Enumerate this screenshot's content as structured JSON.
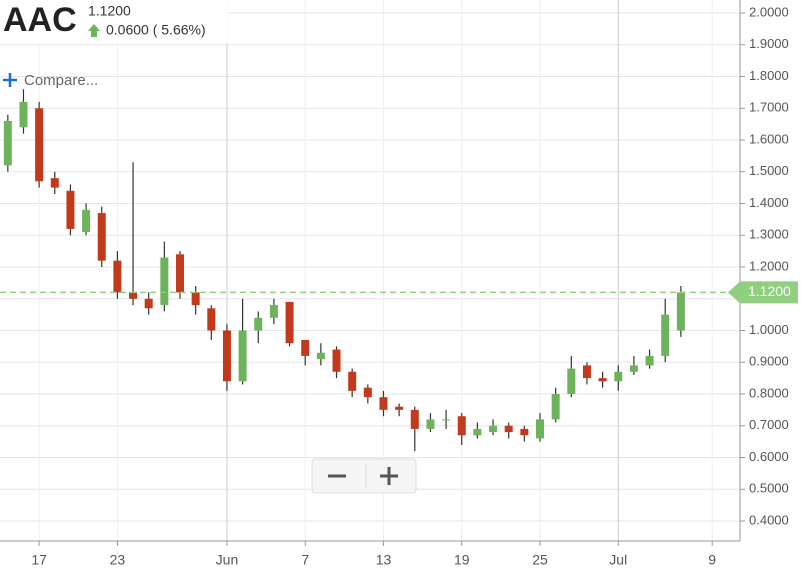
{
  "header": {
    "symbol": "AAC",
    "price": "1.1200",
    "change": "0.0600 ( 5.66%)",
    "compare": "Compare..."
  },
  "chart_data": {
    "type": "candlestick",
    "categories": [
      null,
      null,
      "17",
      null,
      null,
      null,
      null,
      "23",
      null,
      null,
      null,
      null,
      null,
      null,
      "Jun",
      null,
      null,
      null,
      null,
      "7",
      null,
      null,
      null,
      null,
      "13",
      null,
      null,
      null,
      null,
      "19",
      null,
      null,
      null,
      null,
      "25",
      null,
      null,
      null,
      null,
      "Jul",
      null,
      null,
      null,
      null,
      null,
      "9"
    ],
    "open": [
      1.52,
      1.64,
      1.7,
      1.48,
      1.44,
      1.31,
      1.37,
      1.22,
      1.12,
      1.1,
      1.08,
      1.24,
      1.12,
      1.07,
      1.0,
      0.84,
      1.0,
      1.04,
      1.09,
      0.97,
      0.91,
      0.94,
      0.87,
      0.82,
      0.79,
      0.76,
      0.75,
      0.69,
      0.72,
      0.73,
      0.67,
      0.68,
      0.7,
      0.69,
      0.66,
      0.72,
      0.8,
      0.89,
      0.85,
      0.84,
      0.87,
      0.89,
      0.92,
      1.0,
      null,
      null
    ],
    "high": [
      1.68,
      1.76,
      1.72,
      1.5,
      1.46,
      1.4,
      1.39,
      1.25,
      1.53,
      1.12,
      1.28,
      1.25,
      1.14,
      1.08,
      1.02,
      1.1,
      1.06,
      1.1,
      1.09,
      0.97,
      0.96,
      0.95,
      0.88,
      0.83,
      0.81,
      0.77,
      0.76,
      0.74,
      0.75,
      0.74,
      0.71,
      0.72,
      0.71,
      0.7,
      0.74,
      0.82,
      0.92,
      0.9,
      0.87,
      0.89,
      0.92,
      0.94,
      1.1,
      1.14,
      null,
      null
    ],
    "low": [
      1.5,
      1.62,
      1.45,
      1.43,
      1.3,
      1.3,
      1.2,
      1.1,
      1.08,
      1.05,
      1.06,
      1.1,
      1.05,
      0.97,
      0.81,
      0.83,
      0.96,
      1.02,
      0.95,
      0.89,
      0.89,
      0.85,
      0.79,
      0.77,
      0.73,
      0.73,
      0.62,
      0.68,
      0.69,
      0.64,
      0.66,
      0.67,
      0.66,
      0.65,
      0.65,
      0.71,
      0.79,
      0.83,
      0.82,
      0.81,
      0.86,
      0.88,
      0.9,
      0.98,
      null,
      null
    ],
    "close": [
      1.66,
      1.72,
      1.47,
      1.45,
      1.32,
      1.38,
      1.22,
      1.12,
      1.1,
      1.07,
      1.23,
      1.12,
      1.08,
      1.0,
      0.84,
      1.0,
      1.04,
      1.08,
      0.96,
      0.92,
      0.93,
      0.87,
      0.81,
      0.79,
      0.75,
      0.75,
      0.69,
      0.72,
      0.72,
      0.67,
      0.69,
      0.7,
      0.68,
      0.67,
      0.72,
      0.8,
      0.88,
      0.85,
      0.84,
      0.87,
      0.89,
      0.92,
      1.05,
      1.12,
      null,
      null
    ],
    "up_color": "#6db35c",
    "down_color": "#c23a1c",
    "wick_color": "#333333",
    "last_price": {
      "value": 1.12,
      "label": "1.1200"
    },
    "last_price_color": "#8fcf7f",
    "ylim": [
      0.337,
      2.041
    ],
    "yticks": [
      {
        "value": 0.4,
        "label": "0.4000"
      },
      {
        "value": 0.5,
        "label": "0.5000"
      },
      {
        "value": 0.6,
        "label": "0.6000"
      },
      {
        "value": 0.7,
        "label": "0.7000"
      },
      {
        "value": 0.8,
        "label": "0.8000"
      },
      {
        "value": 0.9,
        "label": "0.9000"
      },
      {
        "value": 1.0,
        "label": "1.0000"
      },
      {
        "value": 1.1,
        "label": "1.1000"
      },
      {
        "value": 1.2,
        "label": "1.2000"
      },
      {
        "value": 1.3,
        "label": "1.3000"
      },
      {
        "value": 1.4,
        "label": "1.4000"
      },
      {
        "value": 1.5,
        "label": "1.5000"
      },
      {
        "value": 1.6,
        "label": "1.6000"
      },
      {
        "value": 1.7,
        "label": "1.7000"
      },
      {
        "value": 1.8,
        "label": "1.8000"
      },
      {
        "value": 1.9,
        "label": "1.9000"
      },
      {
        "value": 2.0,
        "label": "2.0000"
      }
    ],
    "grid": true
  }
}
